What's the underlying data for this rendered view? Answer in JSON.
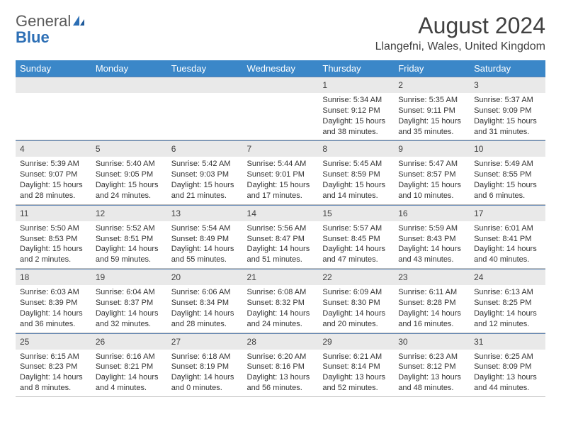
{
  "logo": {
    "line1": "General",
    "line2": "Blue"
  },
  "header": {
    "title": "August 2024",
    "location": "Llangefni, Wales, United Kingdom"
  },
  "colors": {
    "header_bg": "#3b87c8",
    "daynum_bg": "#e9e9e9",
    "cell_top_border": "#5a82b2",
    "logo_gray": "#5a5a5a",
    "logo_blue": "#2d6fb5",
    "text": "#333333"
  },
  "calendar": {
    "day_headers": [
      "Sunday",
      "Monday",
      "Tuesday",
      "Wednesday",
      "Thursday",
      "Friday",
      "Saturday"
    ],
    "weeks": [
      [
        null,
        null,
        null,
        null,
        {
          "n": "1",
          "sr": "5:34 AM",
          "ss": "9:12 PM",
          "dl": "15 hours and 38 minutes."
        },
        {
          "n": "2",
          "sr": "5:35 AM",
          "ss": "9:11 PM",
          "dl": "15 hours and 35 minutes."
        },
        {
          "n": "3",
          "sr": "5:37 AM",
          "ss": "9:09 PM",
          "dl": "15 hours and 31 minutes."
        }
      ],
      [
        {
          "n": "4",
          "sr": "5:39 AM",
          "ss": "9:07 PM",
          "dl": "15 hours and 28 minutes."
        },
        {
          "n": "5",
          "sr": "5:40 AM",
          "ss": "9:05 PM",
          "dl": "15 hours and 24 minutes."
        },
        {
          "n": "6",
          "sr": "5:42 AM",
          "ss": "9:03 PM",
          "dl": "15 hours and 21 minutes."
        },
        {
          "n": "7",
          "sr": "5:44 AM",
          "ss": "9:01 PM",
          "dl": "15 hours and 17 minutes."
        },
        {
          "n": "8",
          "sr": "5:45 AM",
          "ss": "8:59 PM",
          "dl": "15 hours and 14 minutes."
        },
        {
          "n": "9",
          "sr": "5:47 AM",
          "ss": "8:57 PM",
          "dl": "15 hours and 10 minutes."
        },
        {
          "n": "10",
          "sr": "5:49 AM",
          "ss": "8:55 PM",
          "dl": "15 hours and 6 minutes."
        }
      ],
      [
        {
          "n": "11",
          "sr": "5:50 AM",
          "ss": "8:53 PM",
          "dl": "15 hours and 2 minutes."
        },
        {
          "n": "12",
          "sr": "5:52 AM",
          "ss": "8:51 PM",
          "dl": "14 hours and 59 minutes."
        },
        {
          "n": "13",
          "sr": "5:54 AM",
          "ss": "8:49 PM",
          "dl": "14 hours and 55 minutes."
        },
        {
          "n": "14",
          "sr": "5:56 AM",
          "ss": "8:47 PM",
          "dl": "14 hours and 51 minutes."
        },
        {
          "n": "15",
          "sr": "5:57 AM",
          "ss": "8:45 PM",
          "dl": "14 hours and 47 minutes."
        },
        {
          "n": "16",
          "sr": "5:59 AM",
          "ss": "8:43 PM",
          "dl": "14 hours and 43 minutes."
        },
        {
          "n": "17",
          "sr": "6:01 AM",
          "ss": "8:41 PM",
          "dl": "14 hours and 40 minutes."
        }
      ],
      [
        {
          "n": "18",
          "sr": "6:03 AM",
          "ss": "8:39 PM",
          "dl": "14 hours and 36 minutes."
        },
        {
          "n": "19",
          "sr": "6:04 AM",
          "ss": "8:37 PM",
          "dl": "14 hours and 32 minutes."
        },
        {
          "n": "20",
          "sr": "6:06 AM",
          "ss": "8:34 PM",
          "dl": "14 hours and 28 minutes."
        },
        {
          "n": "21",
          "sr": "6:08 AM",
          "ss": "8:32 PM",
          "dl": "14 hours and 24 minutes."
        },
        {
          "n": "22",
          "sr": "6:09 AM",
          "ss": "8:30 PM",
          "dl": "14 hours and 20 minutes."
        },
        {
          "n": "23",
          "sr": "6:11 AM",
          "ss": "8:28 PM",
          "dl": "14 hours and 16 minutes."
        },
        {
          "n": "24",
          "sr": "6:13 AM",
          "ss": "8:25 PM",
          "dl": "14 hours and 12 minutes."
        }
      ],
      [
        {
          "n": "25",
          "sr": "6:15 AM",
          "ss": "8:23 PM",
          "dl": "14 hours and 8 minutes."
        },
        {
          "n": "26",
          "sr": "6:16 AM",
          "ss": "8:21 PM",
          "dl": "14 hours and 4 minutes."
        },
        {
          "n": "27",
          "sr": "6:18 AM",
          "ss": "8:19 PM",
          "dl": "14 hours and 0 minutes."
        },
        {
          "n": "28",
          "sr": "6:20 AM",
          "ss": "8:16 PM",
          "dl": "13 hours and 56 minutes."
        },
        {
          "n": "29",
          "sr": "6:21 AM",
          "ss": "8:14 PM",
          "dl": "13 hours and 52 minutes."
        },
        {
          "n": "30",
          "sr": "6:23 AM",
          "ss": "8:12 PM",
          "dl": "13 hours and 48 minutes."
        },
        {
          "n": "31",
          "sr": "6:25 AM",
          "ss": "8:09 PM",
          "dl": "13 hours and 44 minutes."
        }
      ]
    ],
    "labels": {
      "sunrise": "Sunrise:",
      "sunset": "Sunset:",
      "daylight": "Daylight:"
    }
  }
}
